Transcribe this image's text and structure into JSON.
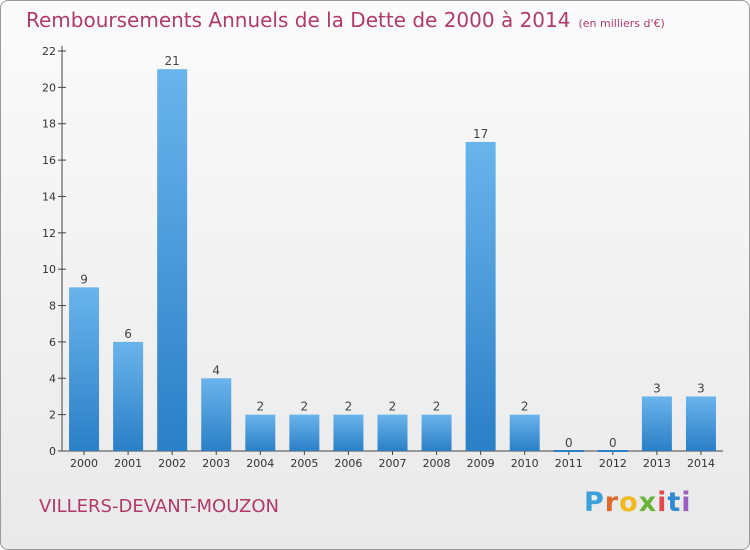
{
  "chart_title": "Remboursements Annuels de la Dette de 2000 à 2014",
  "unit_note": "(en milliers d'€)",
  "commune_name": "VILLERS-DEVANT-MOUZON",
  "logo_text": "Proxiti",
  "colors": {
    "title": "#b03a6a",
    "bar_light": "#6ab4ec",
    "bar_dark": "#2a7fc6",
    "axis": "#444444"
  },
  "chart_data": {
    "type": "bar",
    "title": "Remboursements Annuels de la Dette de 2000 à 2014",
    "subtitle": "(en milliers d'€)",
    "xlabel": "",
    "ylabel": "",
    "categories": [
      "2000",
      "2001",
      "2002",
      "2003",
      "2004",
      "2005",
      "2006",
      "2007",
      "2008",
      "2009",
      "2010",
      "2011",
      "2012",
      "2013",
      "2014"
    ],
    "values": [
      9,
      6,
      21,
      4,
      2,
      2,
      2,
      2,
      2,
      17,
      2,
      0,
      0,
      3,
      3
    ],
    "data_labels": [
      "9",
      "6",
      "21",
      "4",
      "2",
      "2",
      "2",
      "2",
      "2",
      "17",
      "2",
      "0",
      "0",
      "3",
      "3"
    ],
    "ylim": [
      0,
      22
    ],
    "yticks": [
      0,
      2,
      4,
      6,
      8,
      10,
      12,
      14,
      16,
      18,
      20,
      22
    ],
    "grid": false,
    "legend": "none"
  }
}
